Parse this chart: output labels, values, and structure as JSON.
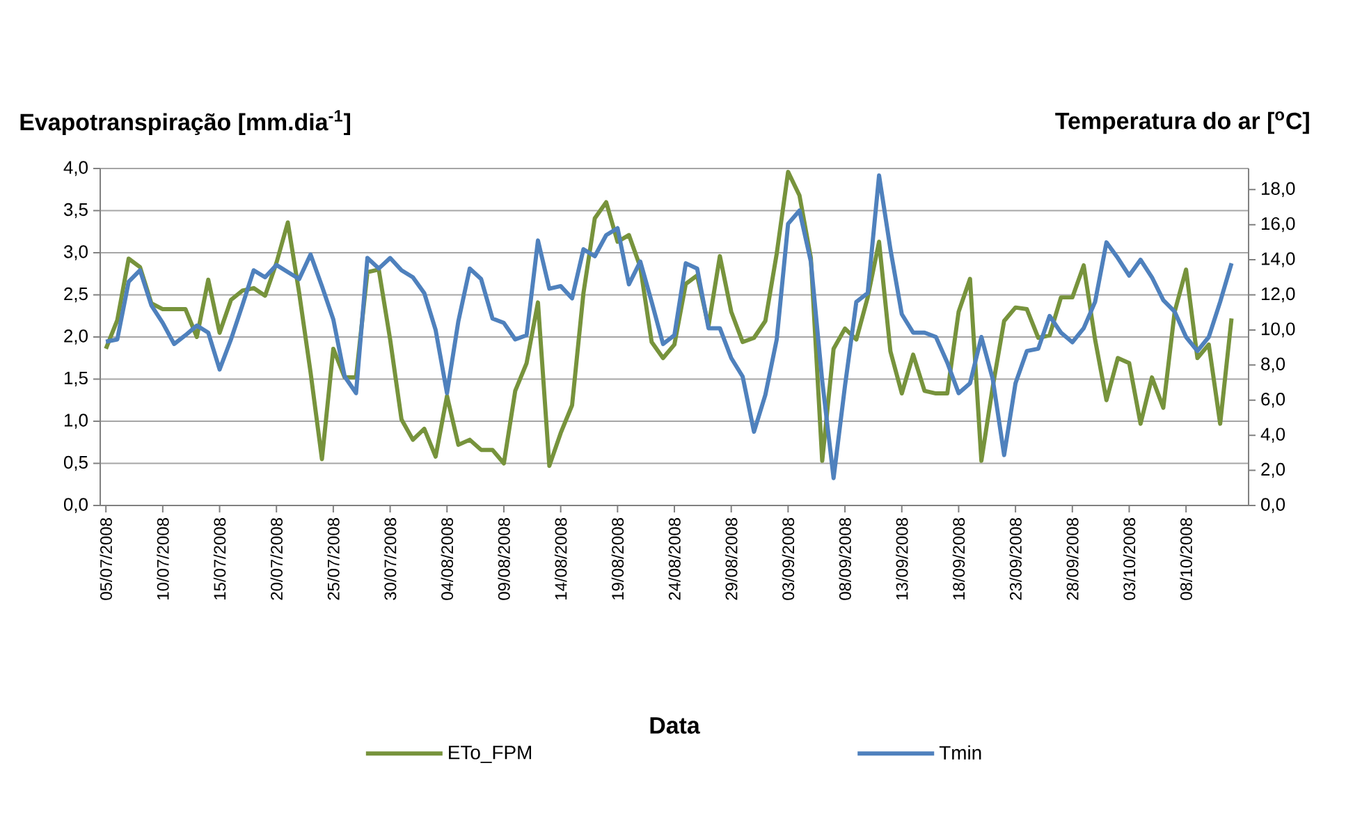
{
  "chart_data": {
    "type": "line",
    "xlabel": "Data",
    "ylabel": "Evapotranspiração [mm.dia$^{-1}$]",
    "y2label": "Temperatura do ar [$^{o}$C]",
    "x": [
      "2008-07-05",
      "2008-07-06",
      "2008-07-07",
      "2008-07-08",
      "2008-07-09",
      "2008-07-10",
      "2008-07-11",
      "2008-07-12",
      "2008-07-13",
      "2008-07-14",
      "2008-07-15",
      "2008-07-16",
      "2008-07-17",
      "2008-07-18",
      "2008-07-19",
      "2008-07-20",
      "2008-07-21",
      "2008-07-22",
      "2008-07-23",
      "2008-07-24",
      "2008-07-25",
      "2008-07-26",
      "2008-07-27",
      "2008-07-28",
      "2008-07-29",
      "2008-07-30",
      "2008-07-31",
      "2008-08-01",
      "2008-08-02",
      "2008-08-03",
      "2008-08-04",
      "2008-08-05",
      "2008-08-06",
      "2008-08-07",
      "2008-08-08",
      "2008-08-09",
      "2008-08-10",
      "2008-08-11",
      "2008-08-12",
      "2008-08-13",
      "2008-08-14",
      "2008-08-15",
      "2008-08-16",
      "2008-08-17",
      "2008-08-18",
      "2008-08-19",
      "2008-08-20",
      "2008-08-21",
      "2008-08-22",
      "2008-08-23",
      "2008-08-24",
      "2008-08-25",
      "2008-08-26",
      "2008-08-27",
      "2008-08-28",
      "2008-08-29",
      "2008-08-30",
      "2008-08-31",
      "2008-09-01",
      "2008-09-02",
      "2008-09-03",
      "2008-09-04",
      "2008-09-05",
      "2008-09-06",
      "2008-09-07",
      "2008-09-08",
      "2008-09-09",
      "2008-09-10",
      "2008-09-11",
      "2008-09-12",
      "2008-09-13",
      "2008-09-14",
      "2008-09-15",
      "2008-09-16",
      "2008-09-17",
      "2008-09-18",
      "2008-09-19",
      "2008-09-20",
      "2008-09-21",
      "2008-09-22",
      "2008-09-23",
      "2008-09-24",
      "2008-09-25",
      "2008-09-26",
      "2008-09-27",
      "2008-09-28",
      "2008-09-29",
      "2008-09-30",
      "2008-10-01",
      "2008-10-02",
      "2008-10-03",
      "2008-10-04",
      "2008-10-05",
      "2008-10-06",
      "2008-10-07",
      "2008-10-08",
      "2008-10-09",
      "2008-10-10",
      "2008-10-11",
      "2008-10-12"
    ],
    "series": [
      {
        "name": "ETo_FPM",
        "color": "#77933c",
        "values": [
          1.86,
          2.2,
          2.93,
          2.83,
          2.4,
          2.33,
          2.33,
          2.33,
          2.0,
          2.68,
          2.05,
          2.44,
          2.55,
          2.58,
          2.49,
          2.88,
          3.36,
          2.52,
          1.58,
          0.55,
          1.86,
          1.52,
          1.52,
          2.77,
          2.8,
          1.97,
          1.02,
          0.78,
          0.91,
          0.58,
          1.3,
          0.72,
          0.78,
          0.66,
          0.66,
          0.5,
          1.36,
          1.69,
          2.41,
          0.47,
          0.86,
          1.19,
          2.52,
          3.41,
          3.6,
          3.13,
          3.21,
          2.83,
          1.94,
          1.75,
          1.91,
          2.63,
          2.73,
          2.13,
          2.96,
          2.3,
          1.94,
          1.99,
          2.19,
          2.99,
          3.96,
          3.68,
          2.94,
          0.53,
          1.86,
          2.1,
          1.97,
          2.47,
          3.13,
          1.83,
          1.33,
          1.79,
          1.36,
          1.33,
          1.33,
          2.3,
          2.69,
          0.53,
          1.41,
          2.19,
          2.35,
          2.33,
          1.99,
          2.02,
          2.47,
          2.47,
          2.85,
          1.97,
          1.25,
          1.75,
          1.69,
          0.97,
          1.52,
          1.16,
          2.3,
          2.8,
          1.75,
          1.91,
          0.97,
          2.22
        ]
      },
      {
        "name": "Tmin",
        "color": "#4f81bd",
        "axis": "y2",
        "values": [
          9.33,
          9.46,
          12.75,
          13.4,
          11.4,
          10.4,
          9.2,
          9.7,
          10.25,
          9.85,
          7.75,
          9.46,
          11.4,
          13.4,
          13.0,
          13.7,
          13.3,
          12.9,
          14.3,
          12.5,
          10.6,
          7.35,
          6.4,
          14.1,
          13.5,
          14.1,
          13.4,
          13.0,
          12.1,
          10.0,
          6.4,
          10.5,
          13.5,
          12.9,
          10.65,
          10.4,
          9.46,
          9.7,
          15.1,
          12.35,
          12.5,
          11.8,
          14.6,
          14.2,
          15.4,
          15.8,
          12.6,
          13.9,
          11.6,
          9.2,
          9.7,
          13.8,
          13.5,
          10.1,
          10.1,
          8.4,
          7.35,
          4.2,
          6.3,
          9.46,
          16.05,
          16.8,
          13.9,
          7.1,
          1.56,
          6.8,
          11.6,
          12.1,
          18.8,
          14.6,
          10.9,
          9.85,
          9.85,
          9.6,
          8.14,
          6.4,
          6.96,
          9.6,
          7.2,
          2.87,
          6.96,
          8.8,
          8.93,
          10.8,
          9.85,
          9.3,
          10.1,
          11.6,
          14.99,
          14.1,
          13.1,
          14.0,
          13.0,
          11.7,
          11.04,
          9.6,
          8.8,
          9.6,
          11.6,
          13.8
        ]
      }
    ],
    "xlim": [
      "2008-07-04T12:00",
      "2008-10-13T12:00"
    ],
    "xticks": [
      {
        "value": "2008-07-05",
        "label": "05/07/2008"
      },
      {
        "value": "2008-07-10",
        "label": "10/07/2008"
      },
      {
        "value": "2008-07-15",
        "label": "15/07/2008"
      },
      {
        "value": "2008-07-20",
        "label": "20/07/2008"
      },
      {
        "value": "2008-07-25",
        "label": "25/07/2008"
      },
      {
        "value": "2008-07-30",
        "label": "30/07/2008"
      },
      {
        "value": "2008-08-04",
        "label": "04/08/2008"
      },
      {
        "value": "2008-08-09",
        "label": "09/08/2008"
      },
      {
        "value": "2008-08-14",
        "label": "14/08/2008"
      },
      {
        "value": "2008-08-19",
        "label": "19/08/2008"
      },
      {
        "value": "2008-08-24",
        "label": "24/08/2008"
      },
      {
        "value": "2008-08-29",
        "label": "29/08/2008"
      },
      {
        "value": "2008-09-03",
        "label": "03/09/2008"
      },
      {
        "value": "2008-09-08",
        "label": "08/09/2008"
      },
      {
        "value": "2008-09-13",
        "label": "13/09/2008"
      },
      {
        "value": "2008-09-18",
        "label": "18/09/2008"
      },
      {
        "value": "2008-09-23",
        "label": "23/09/2008"
      },
      {
        "value": "2008-09-28",
        "label": "28/09/2008"
      },
      {
        "value": "2008-10-03",
        "label": "03/10/2008"
      },
      {
        "value": "2008-10-08",
        "label": "08/10/2008"
      }
    ],
    "ylim": [
      0,
      4
    ],
    "yticks": [
      {
        "value": 0,
        "label": "0,0"
      },
      {
        "value": 0.5,
        "label": "0,5"
      },
      {
        "value": 1,
        "label": "1,0"
      },
      {
        "value": 1.5,
        "label": "1,5"
      },
      {
        "value": 2,
        "label": "2,0"
      },
      {
        "value": 2.5,
        "label": "2,5"
      },
      {
        "value": 3,
        "label": "3,0"
      },
      {
        "value": 3.5,
        "label": "3,5"
      },
      {
        "value": 4,
        "label": "4,0"
      }
    ],
    "y2lim": [
      0,
      19.2
    ],
    "y2ticks": [
      {
        "value": 0,
        "label": "0,0"
      },
      {
        "value": 2,
        "label": "2,0"
      },
      {
        "value": 4,
        "label": "4,0"
      },
      {
        "value": 6,
        "label": "6,0"
      },
      {
        "value": 8,
        "label": "8,0"
      },
      {
        "value": 10,
        "label": "10,0"
      },
      {
        "value": 12,
        "label": "12,0"
      },
      {
        "value": 14,
        "label": "14,0"
      },
      {
        "value": 16,
        "label": "16,0"
      },
      {
        "value": 18,
        "label": "18,0"
      }
    ],
    "grid": "y",
    "legend": "bottom",
    "line_style": "solid"
  }
}
